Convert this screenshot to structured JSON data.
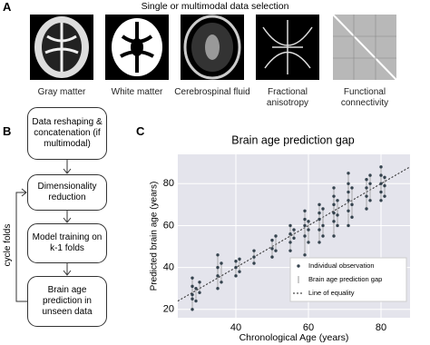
{
  "panel_labels": [
    "A",
    "B",
    "C"
  ],
  "panel_a": {
    "title": "Single or multimodal data selection",
    "images": [
      "Gray matter",
      "White matter",
      "Cerebrospinal fluid",
      "Fractional anisotropy",
      "Functional connectivity"
    ]
  },
  "panel_b": {
    "steps": [
      "Data reshaping & concatenation (if multimodal)",
      "Dimensionality reduction",
      "Model training on k-1 folds",
      "Brain age prediction in unseen data"
    ],
    "loop_label": "cycle folds"
  },
  "chart_data": {
    "type": "scatter",
    "title": "Brain age prediction gap",
    "x_label": "Chronological Age (years)",
    "y_label": "Predicted brain age (years)",
    "series": [
      {
        "name": "Individual observation",
        "color": "#35434e",
        "x": [
          28,
          28,
          28,
          28,
          28,
          29,
          29,
          30,
          30,
          35,
          35,
          35,
          35,
          36,
          36,
          40,
          40,
          40,
          41,
          41,
          45,
          45,
          45,
          50,
          50,
          50,
          51,
          51,
          55,
          55,
          55,
          55,
          56,
          56,
          59,
          59,
          59,
          59,
          59,
          60,
          60,
          60,
          63,
          63,
          63,
          63,
          63,
          64,
          64,
          64,
          67,
          67,
          67,
          67,
          67,
          67,
          68,
          68,
          68,
          71,
          71,
          71,
          71,
          71,
          71,
          72,
          72,
          72,
          76,
          76,
          76,
          76,
          77,
          77,
          77,
          80,
          80,
          80,
          80,
          80,
          81,
          81,
          81
        ],
        "values": [
          20,
          25,
          27,
          31,
          35,
          24,
          30,
          28,
          33,
          30,
          36,
          40,
          46,
          33,
          42,
          36,
          40,
          43,
          38,
          44,
          42,
          45,
          48,
          45,
          49,
          53,
          48,
          55,
          48,
          52,
          56,
          60,
          54,
          58,
          46,
          55,
          60,
          63,
          67,
          52,
          58,
          62,
          52,
          58,
          63,
          66,
          70,
          55,
          60,
          68,
          55,
          62,
          66,
          70,
          74,
          78,
          60,
          65,
          72,
          60,
          67,
          72,
          76,
          80,
          85,
          64,
          70,
          78,
          68,
          74,
          78,
          82,
          72,
          80,
          84,
          72,
          76,
          80,
          84,
          88,
          74,
          79,
          83
        ]
      }
    ],
    "gap_label": "Brain age prediction gap",
    "gap_color": "#9a9a9a",
    "equality_label": "Line of equality",
    "xlim": [
      24,
      88
    ],
    "ylim": [
      16,
      94
    ],
    "xticks": [
      40,
      60,
      80
    ],
    "yticks": [
      20,
      40,
      60,
      80
    ],
    "grid": true,
    "legend": "lower-right"
  }
}
